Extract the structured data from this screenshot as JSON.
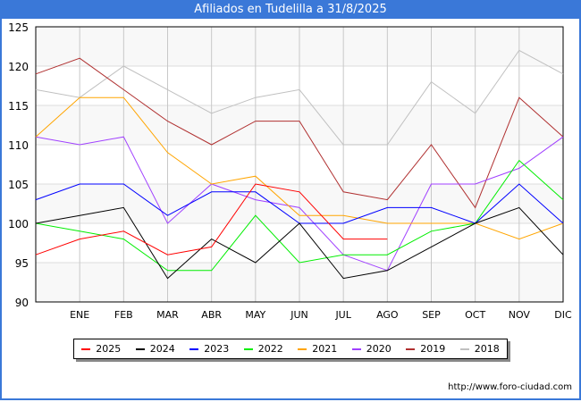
{
  "title": "Afiliados en Tudelilla a 31/8/2025",
  "url": "http://www.foro-ciudad.com",
  "watermark": "FORO-CIUDAD.COM",
  "chart_data": {
    "type": "line",
    "title": "Afiliados en Tudelilla a 31/8/2025",
    "categories": [
      "",
      "ENE",
      "FEB",
      "MAR",
      "ABR",
      "MAY",
      "JUN",
      "JUL",
      "AGO",
      "SEP",
      "OCT",
      "NOV",
      "DIC"
    ],
    "ylim": [
      90,
      125
    ],
    "yticks": [
      90,
      95,
      100,
      105,
      110,
      115,
      120,
      125
    ],
    "grid": true,
    "legend": "bottom",
    "series": [
      {
        "name": "2025",
        "color": "#ff0000",
        "values": [
          96,
          98,
          99,
          96,
          97,
          105,
          104,
          98,
          98,
          null,
          null,
          null,
          null
        ]
      },
      {
        "name": "2024",
        "color": "#000000",
        "values": [
          100,
          101,
          102,
          93,
          98,
          95,
          100,
          93,
          94,
          97,
          100,
          102,
          96
        ]
      },
      {
        "name": "2023",
        "color": "#0000ff",
        "values": [
          103,
          105,
          105,
          101,
          104,
          104,
          100,
          100,
          102,
          102,
          100,
          105,
          100
        ]
      },
      {
        "name": "2022",
        "color": "#00ee00",
        "values": [
          100,
          99,
          98,
          94,
          94,
          101,
          95,
          96,
          96,
          99,
          100,
          108,
          103
        ]
      },
      {
        "name": "2021",
        "color": "#ffa500",
        "values": [
          111,
          116,
          116,
          109,
          105,
          106,
          101,
          101,
          100,
          100,
          100,
          98,
          100
        ]
      },
      {
        "name": "2020",
        "color": "#a040ff",
        "values": [
          111,
          110,
          111,
          100,
          105,
          103,
          102,
          96,
          94,
          105,
          105,
          107,
          111
        ]
      },
      {
        "name": "2019",
        "color": "#b03030",
        "values": [
          119,
          121,
          117,
          113,
          110,
          113,
          113,
          104,
          103,
          110,
          102,
          116,
          111
        ]
      },
      {
        "name": "2018",
        "color": "#c0c0c0",
        "values": [
          117,
          116,
          120,
          117,
          114,
          116,
          117,
          110,
          110,
          118,
          114,
          122,
          119
        ]
      }
    ]
  }
}
